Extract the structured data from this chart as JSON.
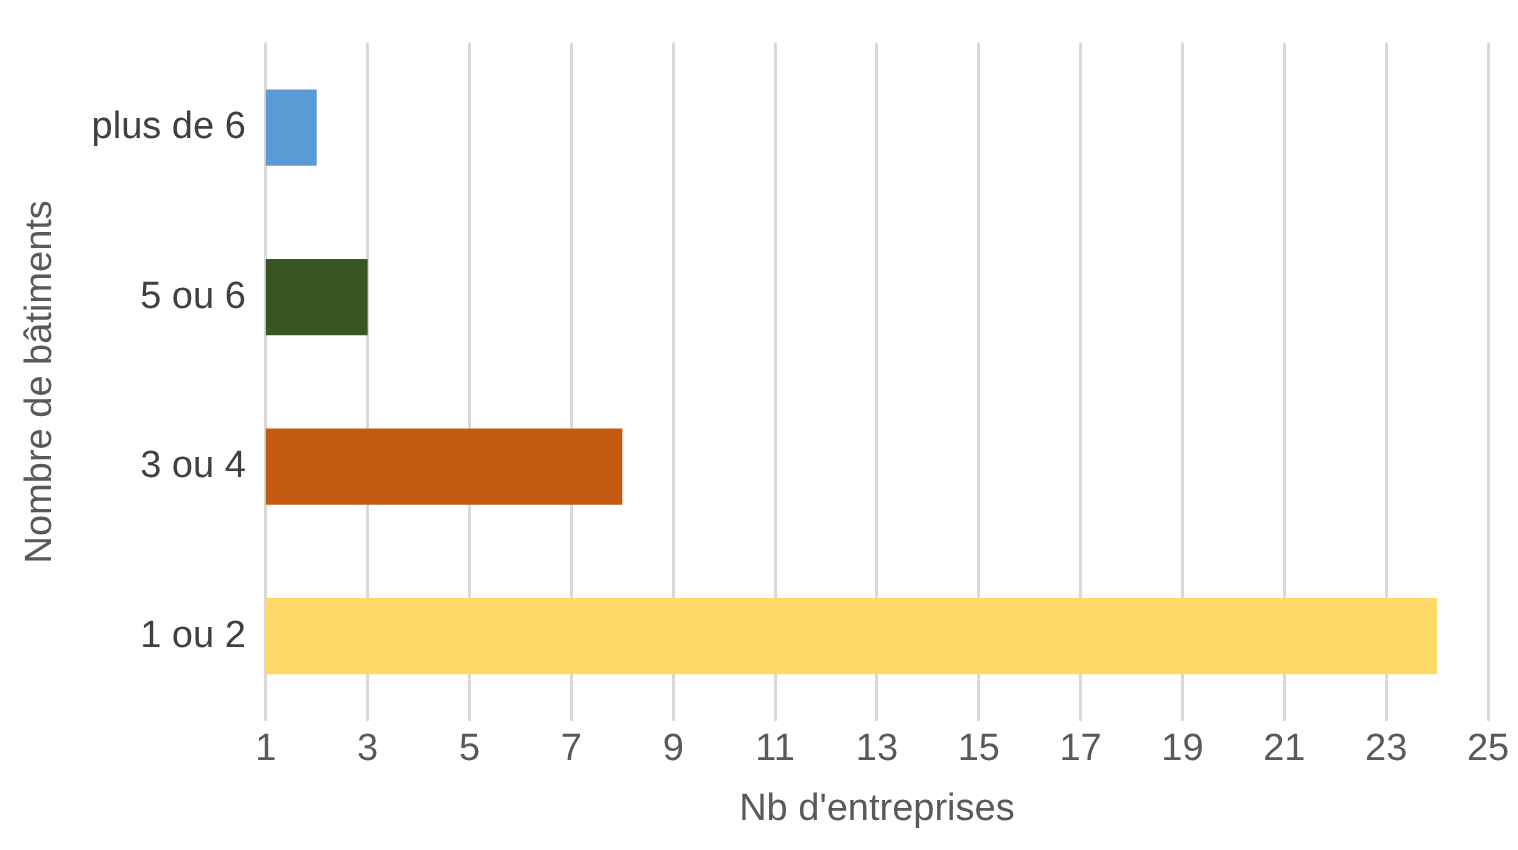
{
  "chart_data": {
    "type": "bar",
    "orientation": "horizontal",
    "xlabel": "Nb d'entreprises",
    "ylabel": "Nombre de bâtiments",
    "categories": [
      "plus de 6",
      "5 ou 6",
      "3 ou 4",
      "1 ou 2"
    ],
    "values": [
      2,
      3,
      8,
      24
    ],
    "colors": [
      "#5b9bd5",
      "#375623",
      "#c55a11",
      "#ffd966"
    ],
    "xlim": [
      1,
      25
    ],
    "xticks": [
      1,
      3,
      5,
      7,
      9,
      11,
      13,
      15,
      17,
      19,
      21,
      23,
      25
    ],
    "grid": "x",
    "legend": false
  }
}
